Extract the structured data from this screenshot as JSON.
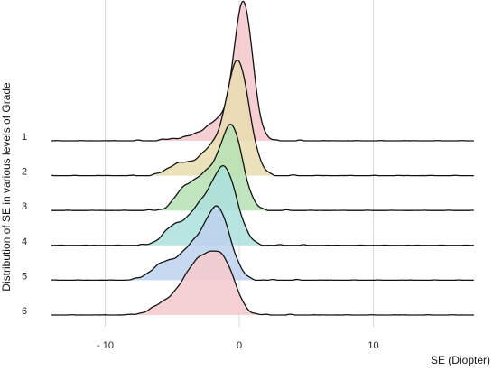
{
  "chart_data": {
    "type": "ridgeline",
    "title": "",
    "xlabel": "SE (Diopter)",
    "ylabel": "Distribution of SE in various levels of Grade",
    "xlim": [
      -14.5,
      17.5
    ],
    "x_ticks": [
      -10,
      0,
      10
    ],
    "x_tick_labels": [
      "- 10",
      "0",
      "10"
    ],
    "grid": "vertical",
    "legend": "none",
    "series": [
      {
        "name": "1",
        "color": "#f4c7cb",
        "peak": 10.4,
        "components": [
          {
            "mu": 0.3,
            "sigma": 0.7,
            "w": 1.0
          },
          {
            "mu": -1.6,
            "sigma": 0.9,
            "w": 0.13
          },
          {
            "mu": -3.5,
            "sigma": 1.3,
            "w": 0.03
          }
        ],
        "range": [
          -14,
          17.5
        ]
      },
      {
        "name": "2",
        "color": "#e8ddb0",
        "peak": 8.6,
        "components": [
          {
            "mu": -0.1,
            "sigma": 0.85,
            "w": 1.0
          },
          {
            "mu": -2.2,
            "sigma": 1.0,
            "w": 0.22
          },
          {
            "mu": -4.6,
            "sigma": 0.8,
            "w": 0.1
          }
        ],
        "range": [
          -14,
          17.5
        ]
      },
      {
        "name": "3",
        "color": "#b6e1b4",
        "peak": 6.4,
        "components": [
          {
            "mu": -0.5,
            "sigma": 0.8,
            "w": 1.0
          },
          {
            "mu": -2.3,
            "sigma": 1.2,
            "w": 0.5
          },
          {
            "mu": -4.2,
            "sigma": 0.7,
            "w": 0.18
          }
        ],
        "range": [
          -14,
          17.5
        ]
      },
      {
        "name": "4",
        "color": "#abe0dc",
        "peak": 5.9,
        "components": [
          {
            "mu": -1.0,
            "sigma": 0.9,
            "w": 1.0
          },
          {
            "mu": -2.8,
            "sigma": 1.1,
            "w": 0.55
          },
          {
            "mu": -5.0,
            "sigma": 0.8,
            "w": 0.22
          }
        ],
        "range": [
          -14,
          17.5
        ]
      },
      {
        "name": "5",
        "color": "#bcd2ee",
        "peak": 5.5,
        "components": [
          {
            "mu": -1.5,
            "sigma": 0.9,
            "w": 1.0
          },
          {
            "mu": -3.3,
            "sigma": 1.2,
            "w": 0.55
          },
          {
            "mu": -5.8,
            "sigma": 0.9,
            "w": 0.22
          }
        ],
        "range": [
          -14,
          17.5
        ]
      },
      {
        "name": "6",
        "color": "#f5c9cd",
        "peak": 4.8,
        "components": [
          {
            "mu": -1.2,
            "sigma": 0.9,
            "w": 1.0
          },
          {
            "mu": -3.0,
            "sigma": 1.0,
            "w": 0.95
          },
          {
            "mu": -5.0,
            "sigma": 1.2,
            "w": 0.3
          }
        ],
        "range": [
          -14,
          17.5
        ]
      }
    ],
    "line_color": "#111111",
    "grid_color": "#d9d9d9"
  }
}
